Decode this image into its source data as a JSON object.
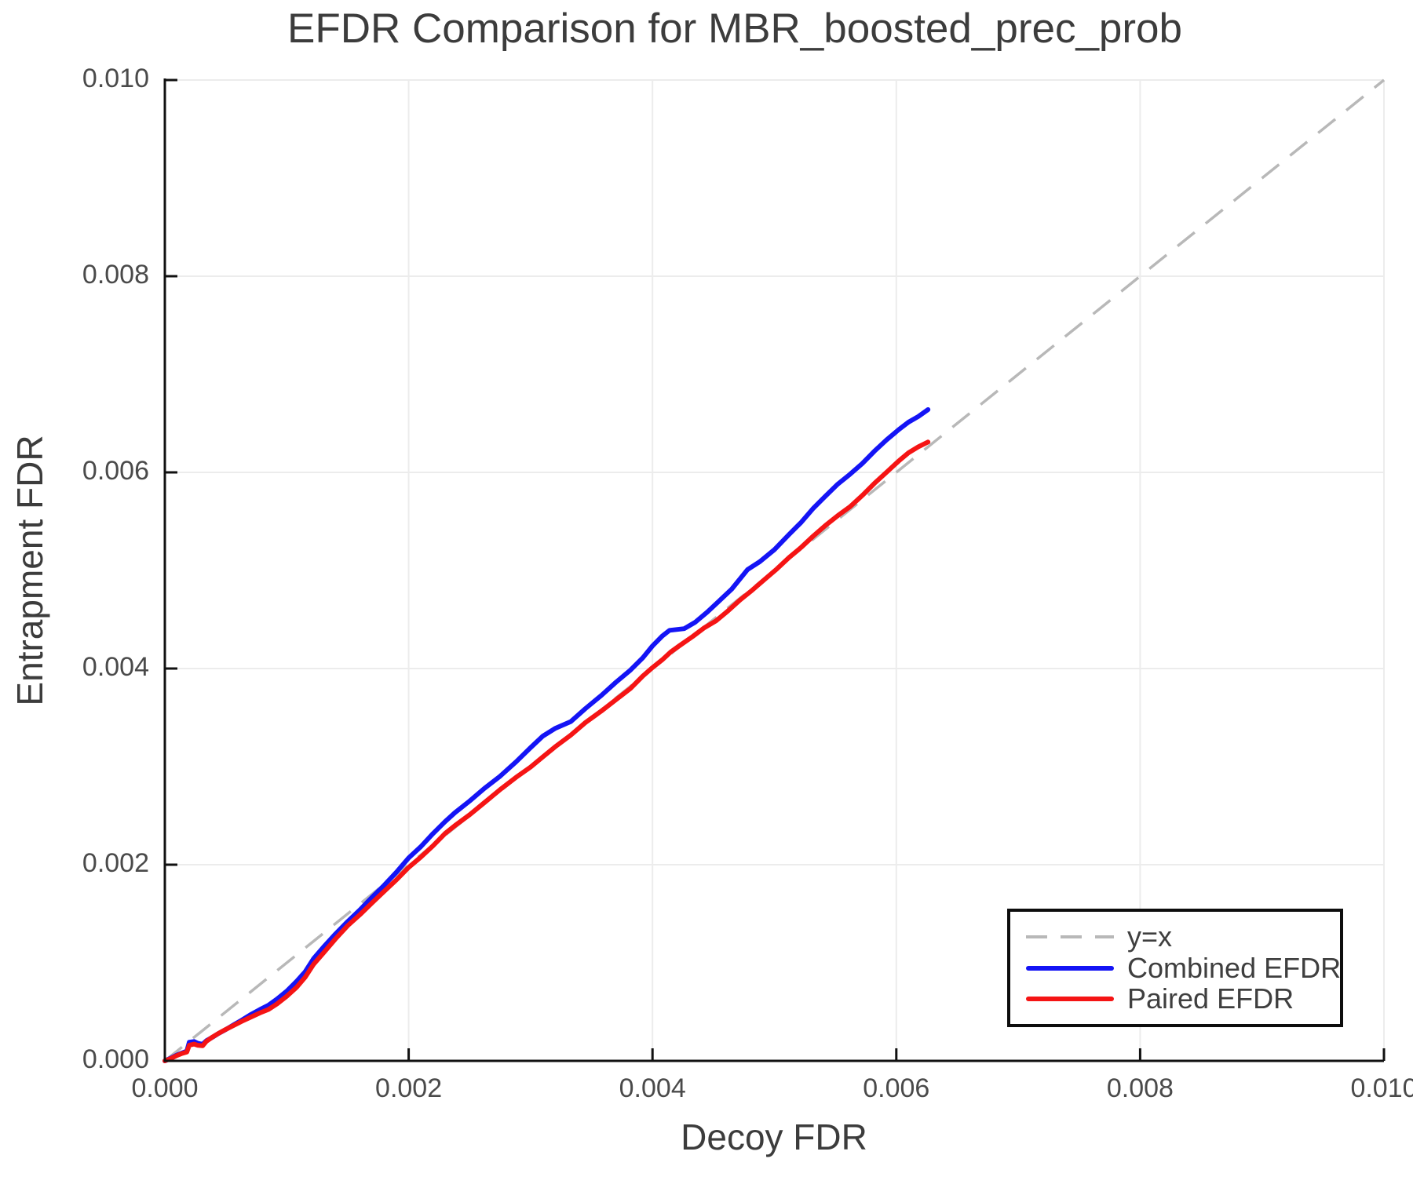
{
  "title": "EFDR Comparison for MBR_boosted_prec_prob",
  "axes": {
    "xlabel": "Decoy FDR",
    "ylabel": "Entrapment FDR",
    "xticks": [
      "0.000",
      "0.002",
      "0.004",
      "0.006",
      "0.008",
      "0.010"
    ],
    "yticks": [
      "0.000",
      "0.002",
      "0.004",
      "0.006",
      "0.008",
      "0.010"
    ]
  },
  "legend": {
    "items": [
      {
        "label": "y=x",
        "sample": "dashed"
      },
      {
        "label": "Combined EFDR",
        "sample": "solid-blue"
      },
      {
        "label": "Paired EFDR",
        "sample": "solid-red"
      }
    ]
  },
  "colors": {
    "reference": "#b8b8b8",
    "combined": "#1414f5",
    "paired": "#f51414",
    "grid": "#ececec",
    "spine": "#111111",
    "text": "#3c3c3c",
    "tick_text": "#4a4a4a"
  },
  "chart_data": {
    "type": "line",
    "title": "EFDR Comparison for MBR_boosted_prec_prob",
    "xlabel": "Decoy FDR",
    "ylabel": "Entrapment FDR",
    "xlim": [
      0,
      0.01
    ],
    "ylim": [
      0,
      0.01
    ],
    "xtick_values": [
      0,
      0.002,
      0.004,
      0.006,
      0.008,
      0.01
    ],
    "ytick_values": [
      0,
      0.002,
      0.004,
      0.006,
      0.008,
      0.01
    ],
    "grid": true,
    "legend_position": "lower right",
    "series": [
      {
        "name": "y=x",
        "style": "dash",
        "color": "#b8b8b8",
        "width": 3.5,
        "scale": 1,
        "points": [
          [
            0,
            0
          ],
          [
            0.01,
            0.01
          ]
        ]
      },
      {
        "name": "Combined EFDR",
        "style": "solid",
        "color": "#1414f5",
        "width": 6,
        "scale": 0.001,
        "points": [
          [
            0,
            0
          ],
          [
            0.05,
            0.03
          ],
          [
            0.1,
            0.06
          ],
          [
            0.14,
            0.08
          ],
          [
            0.18,
            0.1
          ],
          [
            0.2,
            0.18
          ],
          [
            0.24,
            0.19
          ],
          [
            0.27,
            0.175
          ],
          [
            0.31,
            0.17
          ],
          [
            0.34,
            0.21
          ],
          [
            0.39,
            0.25
          ],
          [
            0.44,
            0.29
          ],
          [
            0.5,
            0.33
          ],
          [
            0.57,
            0.38
          ],
          [
            0.63,
            0.42
          ],
          [
            0.7,
            0.47
          ],
          [
            0.78,
            0.52
          ],
          [
            0.85,
            0.56
          ],
          [
            0.92,
            0.62
          ],
          [
            1.0,
            0.7
          ],
          [
            1.08,
            0.8
          ],
          [
            1.15,
            0.9
          ],
          [
            1.22,
            1.04
          ],
          [
            1.3,
            1.16
          ],
          [
            1.4,
            1.3
          ],
          [
            1.5,
            1.43
          ],
          [
            1.6,
            1.55
          ],
          [
            1.7,
            1.68
          ],
          [
            1.8,
            1.8
          ],
          [
            1.9,
            1.93
          ],
          [
            2.0,
            2.07
          ],
          [
            2.1,
            2.18
          ],
          [
            2.2,
            2.31
          ],
          [
            2.3,
            2.43
          ],
          [
            2.38,
            2.52
          ],
          [
            2.5,
            2.64
          ],
          [
            2.62,
            2.77
          ],
          [
            2.75,
            2.9
          ],
          [
            2.88,
            3.05
          ],
          [
            3.0,
            3.2
          ],
          [
            3.1,
            3.32
          ],
          [
            3.2,
            3.4
          ],
          [
            3.33,
            3.47
          ],
          [
            3.45,
            3.6
          ],
          [
            3.58,
            3.73
          ],
          [
            3.7,
            3.86
          ],
          [
            3.82,
            3.98
          ],
          [
            3.92,
            4.1
          ],
          [
            4.0,
            4.22
          ],
          [
            4.08,
            4.32
          ],
          [
            4.14,
            4.38
          ],
          [
            4.26,
            4.4
          ],
          [
            4.35,
            4.47
          ],
          [
            4.45,
            4.58
          ],
          [
            4.55,
            4.7
          ],
          [
            4.65,
            4.82
          ],
          [
            4.78,
            5.02
          ],
          [
            4.88,
            5.1
          ],
          [
            5.0,
            5.22
          ],
          [
            5.12,
            5.37
          ],
          [
            5.22,
            5.49
          ],
          [
            5.32,
            5.63
          ],
          [
            5.42,
            5.75
          ],
          [
            5.52,
            5.87
          ],
          [
            5.62,
            5.97
          ],
          [
            5.72,
            6.08
          ],
          [
            5.82,
            6.21
          ],
          [
            5.92,
            6.33
          ],
          [
            6.02,
            6.44
          ],
          [
            6.1,
            6.52
          ],
          [
            6.18,
            6.58
          ],
          [
            6.26,
            6.64
          ]
        ]
      },
      {
        "name": "Paired EFDR",
        "style": "solid",
        "color": "#f51414",
        "width": 6,
        "scale": 0.001,
        "points": [
          [
            0,
            0
          ],
          [
            0.05,
            0.025
          ],
          [
            0.1,
            0.055
          ],
          [
            0.14,
            0.075
          ],
          [
            0.18,
            0.09
          ],
          [
            0.2,
            0.17
          ],
          [
            0.24,
            0.18
          ],
          [
            0.27,
            0.165
          ],
          [
            0.31,
            0.155
          ],
          [
            0.34,
            0.195
          ],
          [
            0.39,
            0.235
          ],
          [
            0.44,
            0.27
          ],
          [
            0.5,
            0.31
          ],
          [
            0.57,
            0.355
          ],
          [
            0.63,
            0.395
          ],
          [
            0.7,
            0.44
          ],
          [
            0.78,
            0.49
          ],
          [
            0.85,
            0.53
          ],
          [
            0.92,
            0.59
          ],
          [
            1.0,
            0.67
          ],
          [
            1.08,
            0.76
          ],
          [
            1.15,
            0.86
          ],
          [
            1.22,
            0.99
          ],
          [
            1.3,
            1.1
          ],
          [
            1.4,
            1.24
          ],
          [
            1.5,
            1.37
          ],
          [
            1.6,
            1.48
          ],
          [
            1.7,
            1.6
          ],
          [
            1.8,
            1.72
          ],
          [
            1.9,
            1.84
          ],
          [
            2.0,
            1.97
          ],
          [
            2.1,
            2.08
          ],
          [
            2.2,
            2.2
          ],
          [
            2.3,
            2.33
          ],
          [
            2.38,
            2.41
          ],
          [
            2.5,
            2.52
          ],
          [
            2.62,
            2.64
          ],
          [
            2.75,
            2.77
          ],
          [
            2.88,
            2.89
          ],
          [
            3.0,
            2.99
          ],
          [
            3.1,
            3.09
          ],
          [
            3.2,
            3.19
          ],
          [
            3.33,
            3.31
          ],
          [
            3.45,
            3.44
          ],
          [
            3.58,
            3.56
          ],
          [
            3.7,
            3.68
          ],
          [
            3.82,
            3.8
          ],
          [
            3.92,
            3.93
          ],
          [
            4.0,
            4.02
          ],
          [
            4.08,
            4.1
          ],
          [
            4.15,
            4.18
          ],
          [
            4.22,
            4.24
          ],
          [
            4.33,
            4.33
          ],
          [
            4.42,
            4.41
          ],
          [
            4.52,
            4.48
          ],
          [
            4.62,
            4.58
          ],
          [
            4.72,
            4.69
          ],
          [
            4.82,
            4.79
          ],
          [
            4.92,
            4.9
          ],
          [
            5.02,
            5.01
          ],
          [
            5.12,
            5.13
          ],
          [
            5.22,
            5.24
          ],
          [
            5.32,
            5.36
          ],
          [
            5.42,
            5.47
          ],
          [
            5.52,
            5.57
          ],
          [
            5.62,
            5.66
          ],
          [
            5.72,
            5.77
          ],
          [
            5.82,
            5.89
          ],
          [
            5.92,
            6.0
          ],
          [
            6.02,
            6.11
          ],
          [
            6.1,
            6.19
          ],
          [
            6.18,
            6.25
          ],
          [
            6.26,
            6.31
          ]
        ]
      }
    ]
  },
  "plot_geometry_note": ""
}
